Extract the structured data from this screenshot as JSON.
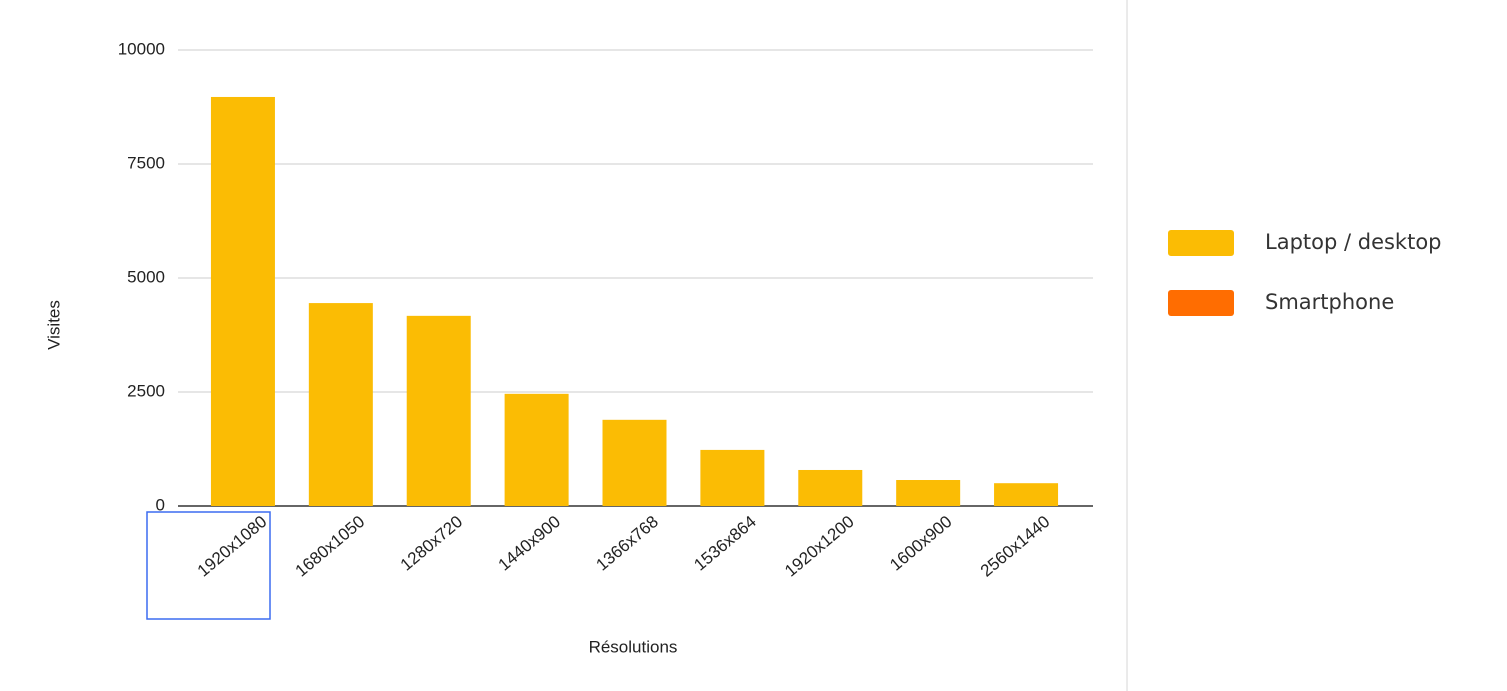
{
  "chart_data": {
    "type": "bar",
    "x_label": "Résolutions",
    "y_label": "Visites",
    "categories": [
      "1920x1080",
      "1680x1050",
      "1280x720",
      "1440x900",
      "1366x768",
      "1536x864",
      "1920x1200",
      "1600x900",
      "2560x1440"
    ],
    "series": [
      {
        "name": "Laptop / desktop",
        "color": "#fbbc04",
        "values": [
          8970,
          4450,
          4170,
          2460,
          1890,
          1230,
          790,
          570,
          500
        ]
      },
      {
        "name": "Smartphone",
        "color": "#ff6d01",
        "values": [
          null,
          null,
          null,
          null,
          null,
          null,
          null,
          null,
          null
        ]
      }
    ],
    "ylim": [
      0,
      10000
    ],
    "yticks": [
      0,
      2500,
      5000,
      7500,
      10000
    ],
    "grid": true,
    "legend": "right"
  }
}
